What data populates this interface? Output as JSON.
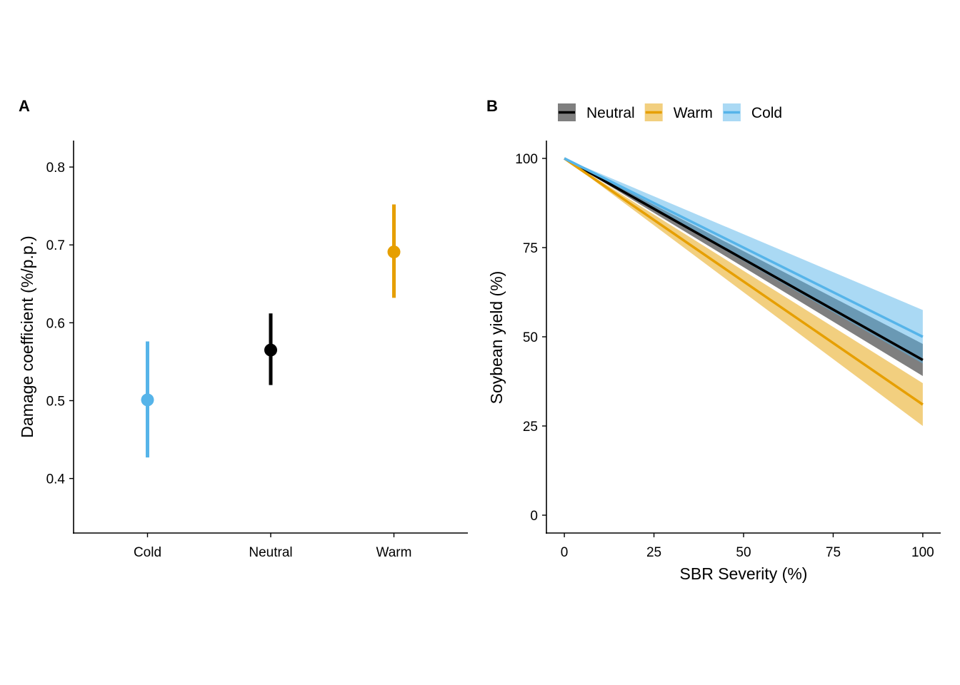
{
  "colors": {
    "Cold": "#56B4E9",
    "Neutral": "#000000",
    "Warm": "#E69F00"
  },
  "panel_a": {
    "letter": "A"
  },
  "panel_b": {
    "letter": "B"
  },
  "chart_data": [
    {
      "type": "scatter",
      "panel": "A",
      "ylabel": "Damage coefficient (%/p.p.)",
      "xlabel": "",
      "categories": [
        "Cold",
        "Neutral",
        "Warm"
      ],
      "ylim": [
        0.33,
        0.834
      ],
      "yticks": [
        "0.4",
        "0.5",
        "0.6",
        "0.7",
        "0.8"
      ],
      "points": [
        {
          "category": "Cold",
          "value": 0.501,
          "lower": 0.427,
          "upper": 0.576
        },
        {
          "category": "Neutral",
          "value": 0.565,
          "lower": 0.52,
          "upper": 0.612
        },
        {
          "category": "Warm",
          "value": 0.691,
          "lower": 0.632,
          "upper": 0.752
        }
      ],
      "grid": false
    },
    {
      "type": "line",
      "panel": "B",
      "xlabel": "SBR Severity (%)",
      "ylabel": "Soybean yield (%)",
      "xlim": [
        -5,
        105
      ],
      "ylim": [
        -5,
        105
      ],
      "xticks": [
        "0",
        "25",
        "50",
        "75",
        "100"
      ],
      "yticks": [
        "0",
        "25",
        "50",
        "75",
        "100"
      ],
      "legend_position": "top",
      "series": [
        {
          "name": "Neutral",
          "x": [
            0,
            100
          ],
          "y": [
            100,
            43.5
          ],
          "lower": [
            100,
            39.0
          ],
          "upper": [
            100,
            48.0
          ]
        },
        {
          "name": "Warm",
          "x": [
            0,
            100
          ],
          "y": [
            100,
            31.0
          ],
          "lower": [
            100,
            25.0
          ],
          "upper": [
            100,
            37.0
          ]
        },
        {
          "name": "Cold",
          "x": [
            0,
            100
          ],
          "y": [
            100,
            50.0
          ],
          "lower": [
            100,
            42.5
          ],
          "upper": [
            100,
            57.5
          ]
        }
      ],
      "grid": false
    }
  ]
}
